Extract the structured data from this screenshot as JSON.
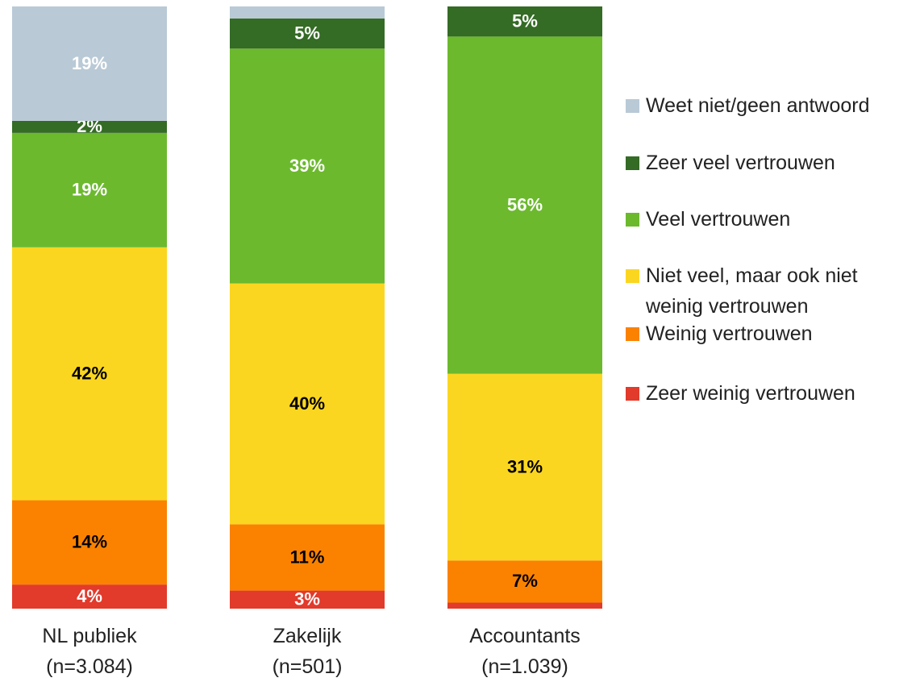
{
  "chart_data": {
    "type": "stacked_bar",
    "categories": [
      "NL publiek\n(n=3.084)",
      "Zakelijk\n(n=501)",
      "Accountants\n(n=1.039)"
    ],
    "ylim": [
      0,
      100
    ],
    "series": [
      {
        "name": "Zeer weinig vertrouwen",
        "color": "#e23a2b",
        "label_color": "#ffffff",
        "values": [
          4,
          3,
          1
        ],
        "value_labels": [
          "4%",
          "3%",
          null
        ]
      },
      {
        "name": "Weinig vertrouwen",
        "color": "#fb8200",
        "label_color": "#000000",
        "values": [
          14,
          11,
          7
        ],
        "value_labels": [
          "14%",
          "11%",
          "7%"
        ]
      },
      {
        "name": "Niet veel, maar ook niet weinig vertrouwen",
        "color": "#fbd620",
        "label_color": "#000000",
        "values": [
          42,
          40,
          31
        ],
        "value_labels": [
          "42%",
          "40%",
          "31%"
        ]
      },
      {
        "name": "Veel vertrouwen",
        "color": "#6cb92e",
        "label_color": "#ffffff",
        "values": [
          19,
          39,
          56
        ],
        "value_labels": [
          "19%",
          "39%",
          "56%"
        ]
      },
      {
        "name": "Zeer veel vertrouwen",
        "color": "#346b25",
        "label_color": "#ffffff",
        "values": [
          2,
          5,
          5
        ],
        "value_labels": [
          "2%",
          "5%",
          "5%"
        ]
      },
      {
        "name": "Weet niet/geen antwoord",
        "color": "#b9c9d6",
        "label_color": "#ffffff",
        "values": [
          19,
          2,
          0
        ],
        "value_labels": [
          "19%",
          null,
          null
        ]
      }
    ]
  }
}
